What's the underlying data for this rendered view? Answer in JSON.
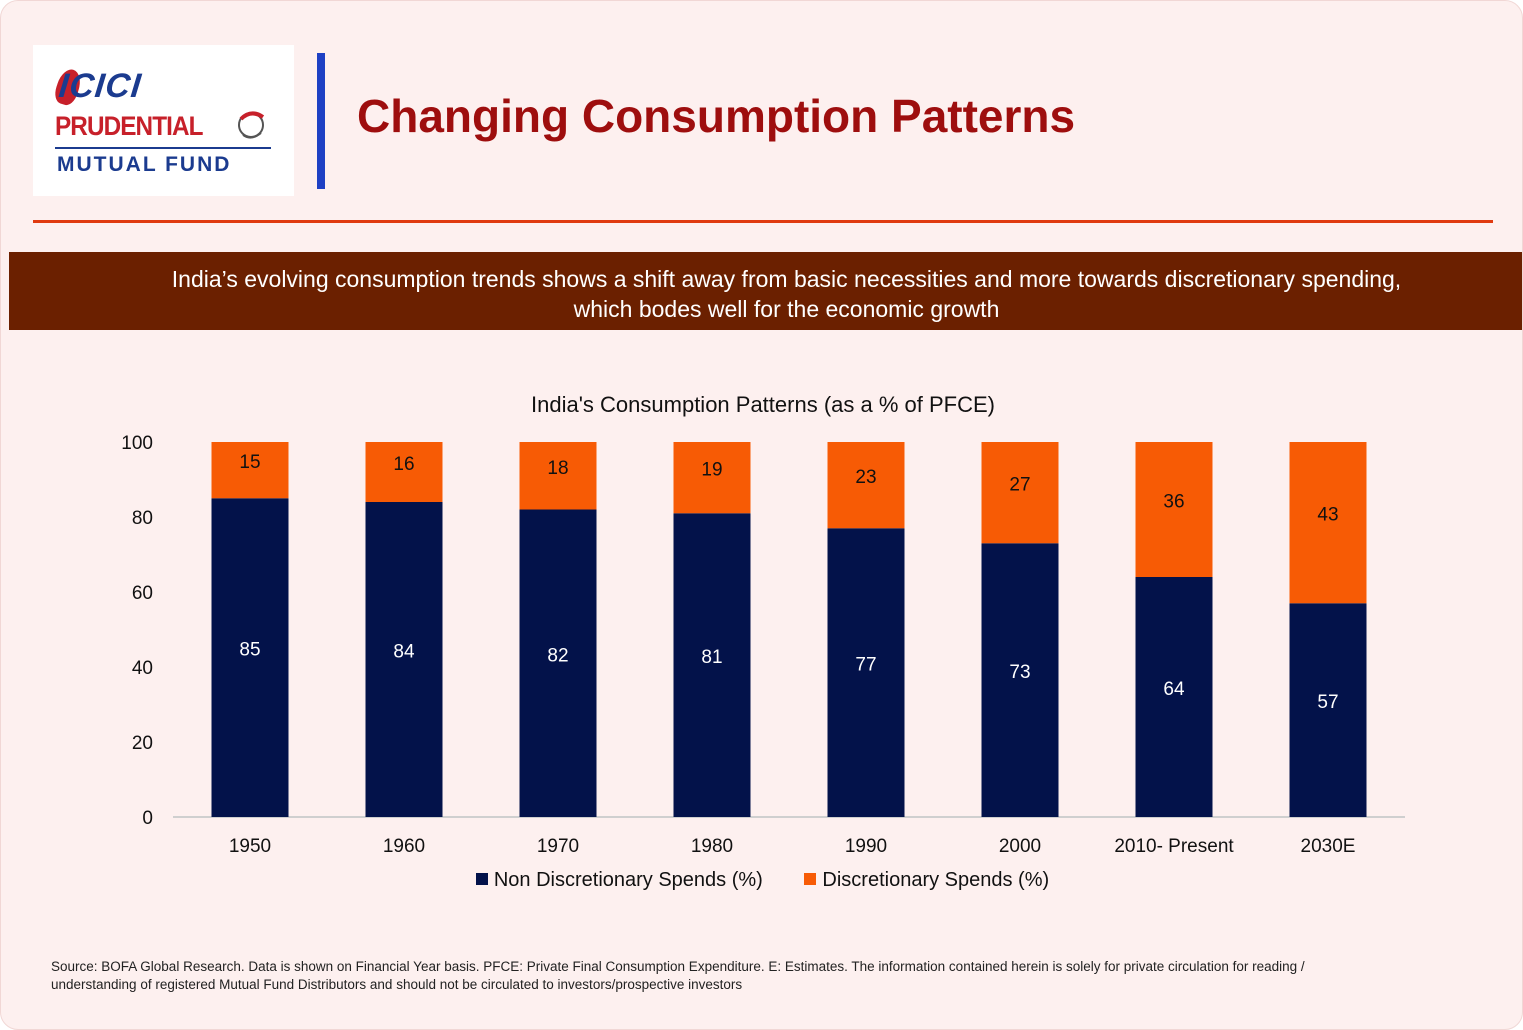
{
  "brand": {
    "logo_icici": "ICICI",
    "logo_prudential": "PRUDENTIAL",
    "logo_mutual_fund": "MUTUAL FUND"
  },
  "header": {
    "title": "Changing Consumption Patterns"
  },
  "banner": {
    "line1": "India’s evolving consumption trends shows a shift away from basic necessities and more towards discretionary spending,",
    "line2": "which bodes well for the economic growth"
  },
  "colors": {
    "non_discretionary": "#03124a",
    "discretionary": "#f75b05",
    "title_red": "#9e0e0e",
    "banner_brown": "#6b2000"
  },
  "chart_data": {
    "type": "bar",
    "stacked": true,
    "title": "India's Consumption Patterns (as a % of PFCE)",
    "categories": [
      "1950",
      "1960",
      "1970",
      "1980",
      "1990",
      "2000",
      "2010- Present",
      "2030E"
    ],
    "series": [
      {
        "name": "Non Discretionary Spends (%)",
        "values": [
          85,
          84,
          82,
          81,
          77,
          73,
          64,
          57
        ]
      },
      {
        "name": "Discretionary Spends (%)",
        "values": [
          15,
          16,
          18,
          19,
          23,
          27,
          36,
          43
        ]
      }
    ],
    "ylim": [
      0,
      100
    ],
    "yticks": [
      0,
      20,
      40,
      60,
      80,
      100
    ],
    "xlabel": "",
    "ylabel": "",
    "legend_position": "bottom",
    "grid": false
  },
  "legend": {
    "item1": "Non Discretionary Spends (%)",
    "item2": "Discretionary Spends (%)"
  },
  "footnote": {
    "line1": "Source: BOFA Global Research. Data is shown on Financial Year basis. PFCE: Private Final Consumption Expenditure. E: Estimates.  The information contained herein is solely for private circulation for reading /",
    "line2": "understanding of registered Mutual Fund Distributors and should not be circulated to investors/prospective investors"
  }
}
